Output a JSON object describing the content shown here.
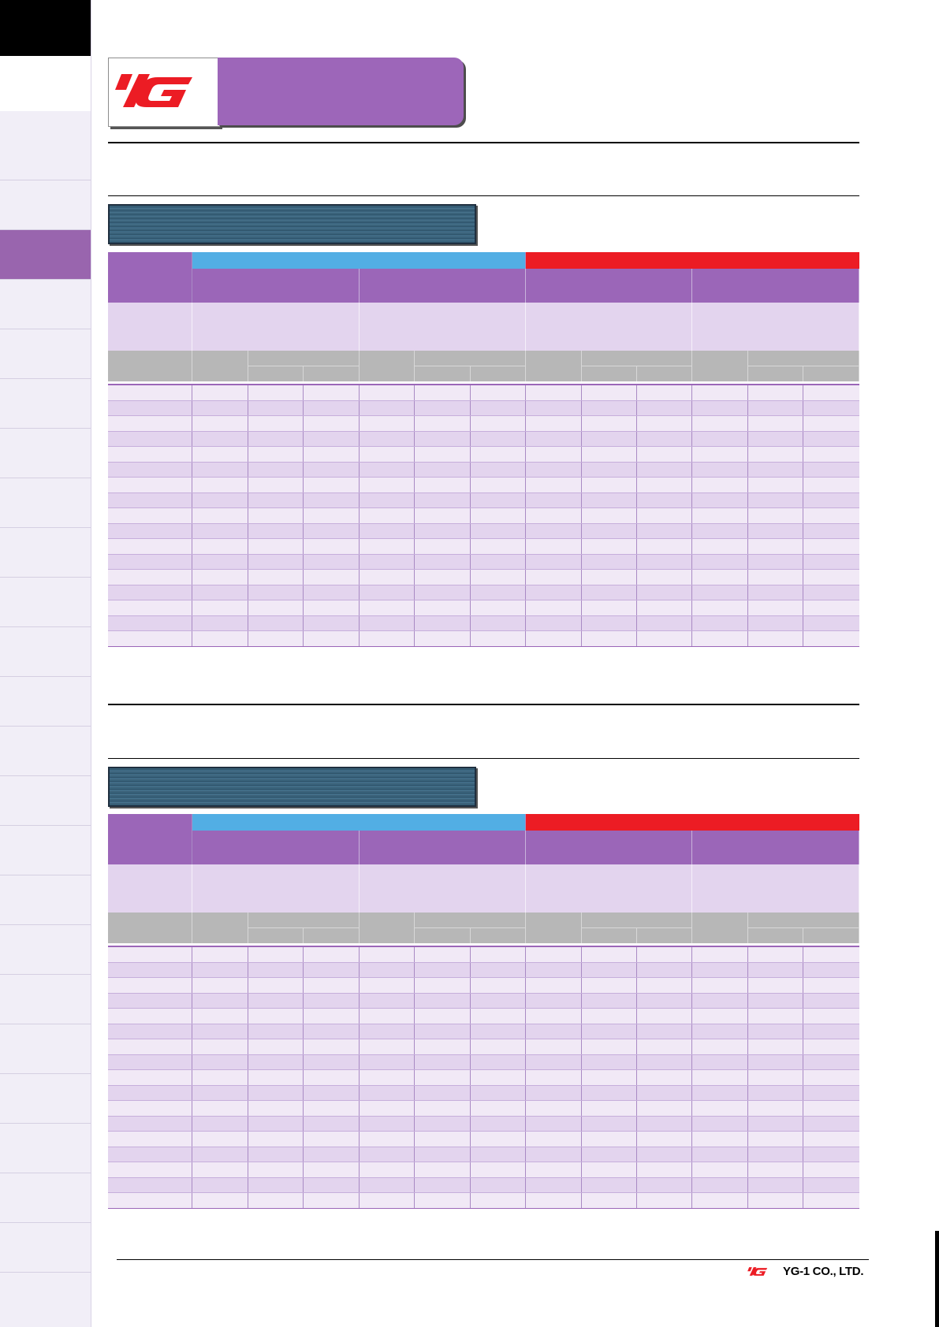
{
  "brand": {
    "logo_icon": "yg-logo-icon",
    "logo_color": "#ec1c24"
  },
  "footer": {
    "company": "YG-1 CO., LTD."
  },
  "colors": {
    "accent_purple": "#9b66b8",
    "coating_blue": "#52aee4",
    "coating_red": "#ec1c24"
  },
  "sidebar": {
    "active_tab_index": 2,
    "tab_count": 23
  },
  "tables": [
    {
      "data_rows": 17
    },
    {
      "data_rows": 17
    }
  ]
}
